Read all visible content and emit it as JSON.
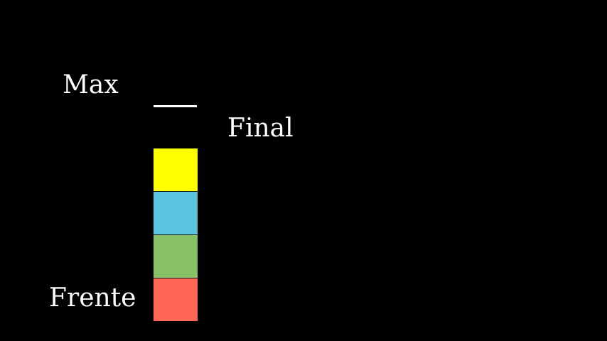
{
  "labels": {
    "max": "Max",
    "final": "Final",
    "frente": "Frente"
  },
  "queue": {
    "cells": [
      {
        "color": "#ffff00"
      },
      {
        "color": "#5bc4de"
      },
      {
        "color": "#88c266"
      },
      {
        "color": "#ff6655"
      }
    ]
  }
}
